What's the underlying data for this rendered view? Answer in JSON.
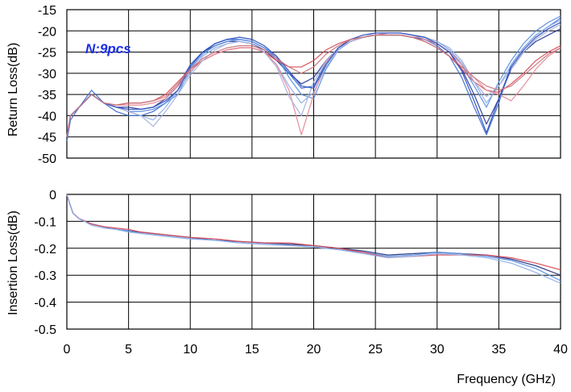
{
  "chart_data": [
    {
      "type": "line",
      "ylabel": "Return Loss(dB)",
      "ylim": [
        -50,
        -15
      ],
      "yticks": [
        "-15",
        "-20",
        "-25",
        "-30",
        "-35",
        "-40",
        "-45",
        "-50"
      ],
      "xlim": [
        0,
        40
      ],
      "grid": true,
      "annotation": "N:9pcs",
      "annotation_color": "#1a2ee6",
      "series": [
        {
          "color": "#2a3f9a",
          "x": [
            0,
            0.3,
            1,
            2,
            3,
            4,
            5,
            6,
            7,
            8,
            9,
            10,
            11,
            12,
            13,
            14,
            15,
            16,
            17,
            18,
            19,
            20,
            21,
            22,
            23,
            24,
            25,
            26,
            27,
            28,
            29,
            30,
            31,
            32,
            33,
            34,
            35,
            36,
            37,
            38,
            39,
            40
          ],
          "values": [
            -45,
            -40,
            -38,
            -35,
            -37,
            -38,
            -38,
            -38.5,
            -38,
            -36,
            -33,
            -28,
            -25,
            -23.5,
            -22.5,
            -22.5,
            -23,
            -24.5,
            -27,
            -30,
            -32.5,
            -31,
            -27,
            -24,
            -22.5,
            -21.5,
            -21,
            -21,
            -21,
            -21.5,
            -22,
            -23,
            -25,
            -29,
            -35,
            -42,
            -36,
            -29,
            -25,
            -22.5,
            -21,
            -19.5
          ]
        },
        {
          "color": "#3f6fd0",
          "x": [
            0,
            0.3,
            1,
            2,
            3,
            4,
            5,
            6,
            7,
            8,
            9,
            10,
            11,
            12,
            13,
            14,
            15,
            16,
            17,
            18,
            19,
            20,
            21,
            22,
            23,
            24,
            25,
            26,
            27,
            28,
            29,
            30,
            31,
            32,
            33,
            34,
            35,
            36,
            37,
            38,
            39,
            40
          ],
          "values": [
            -46,
            -41,
            -38,
            -34,
            -37,
            -39,
            -40,
            -40,
            -39,
            -37,
            -34,
            -28,
            -25,
            -23,
            -22,
            -22,
            -22.5,
            -24,
            -26.5,
            -30,
            -33.5,
            -33,
            -27.5,
            -24,
            -22,
            -21.5,
            -21,
            -21,
            -21,
            -21.5,
            -22,
            -23.5,
            -26,
            -31,
            -38,
            -44.5,
            -37,
            -28,
            -24,
            -21,
            -19,
            -17
          ]
        },
        {
          "color": "#5a8fe0",
          "x": [
            0,
            0.3,
            1,
            2,
            3,
            4,
            5,
            6,
            7,
            8,
            9,
            10,
            11,
            12,
            13,
            14,
            15,
            16,
            17,
            18,
            19,
            20,
            21,
            22,
            23,
            24,
            25,
            26,
            27,
            28,
            29,
            30,
            31,
            32,
            33,
            34,
            35,
            36,
            37,
            38,
            39,
            40
          ],
          "values": [
            -45,
            -40,
            -38,
            -35,
            -37,
            -38,
            -39,
            -39,
            -38.5,
            -37,
            -35,
            -29,
            -25.5,
            -23.5,
            -22.5,
            -22,
            -22.5,
            -24,
            -26,
            -31,
            -35,
            -36,
            -29,
            -24.5,
            -22.5,
            -21.5,
            -21,
            -20.5,
            -20.5,
            -21,
            -21.5,
            -22.5,
            -24.5,
            -28,
            -33,
            -38,
            -32,
            -27,
            -23,
            -20,
            -18,
            -16.5
          ]
        },
        {
          "color": "#8fb0e8",
          "x": [
            0,
            0.3,
            1,
            2,
            3,
            4,
            5,
            6,
            7,
            8,
            9,
            10,
            11,
            12,
            13,
            14,
            15,
            16,
            17,
            18,
            19,
            20,
            21,
            22,
            23,
            24,
            25,
            26,
            27,
            28,
            29,
            30,
            31,
            32,
            33,
            34,
            35,
            36,
            37,
            38,
            39,
            40
          ],
          "values": [
            -45,
            -40,
            -38,
            -35,
            -37,
            -38,
            -39,
            -40,
            -41,
            -38,
            -34,
            -30,
            -26,
            -24,
            -23,
            -22.5,
            -23,
            -25,
            -28,
            -33,
            -37,
            -34.5,
            -28.5,
            -24.5,
            -22.5,
            -21.5,
            -21,
            -20.5,
            -20.5,
            -21,
            -21.5,
            -22.5,
            -24,
            -27,
            -32,
            -37,
            -33,
            -28,
            -24,
            -21,
            -19,
            -17.5
          ]
        },
        {
          "color": "#d94d5a",
          "x": [
            0,
            0.3,
            1,
            2,
            3,
            4,
            5,
            6,
            7,
            8,
            9,
            10,
            11,
            12,
            13,
            14,
            15,
            16,
            17,
            18,
            19,
            20,
            21,
            22,
            23,
            24,
            25,
            26,
            27,
            28,
            29,
            30,
            31,
            32,
            33,
            34,
            35,
            36,
            37,
            38,
            39,
            40
          ],
          "values": [
            -45,
            -40,
            -38,
            -35,
            -37,
            -37.5,
            -37,
            -37,
            -36.5,
            -35,
            -32,
            -29,
            -27,
            -25.5,
            -24.5,
            -24,
            -24,
            -25,
            -27,
            -28.5,
            -28.5,
            -27,
            -24.5,
            -23,
            -22,
            -21.5,
            -21,
            -21,
            -21,
            -21.5,
            -22.5,
            -24,
            -26,
            -29,
            -32,
            -34,
            -34.5,
            -32.5,
            -30,
            -27,
            -25,
            -23.5
          ]
        },
        {
          "color": "#e58a98",
          "x": [
            0,
            0.3,
            1,
            2,
            3,
            4,
            5,
            6,
            7,
            8,
            9,
            10,
            11,
            12,
            13,
            14,
            15,
            16,
            17,
            18,
            19,
            20,
            21,
            22,
            23,
            24,
            25,
            26,
            27,
            28,
            29,
            30,
            31,
            32,
            33,
            34,
            35,
            36,
            37,
            38,
            39,
            40
          ],
          "values": [
            -45,
            -40,
            -38,
            -35,
            -37,
            -37.5,
            -37.5,
            -37.5,
            -37,
            -36,
            -33,
            -29.5,
            -27,
            -25.5,
            -24.5,
            -24,
            -24,
            -25,
            -28,
            -34,
            -44.5,
            -35,
            -27.5,
            -24,
            -22.5,
            -21.5,
            -21,
            -20.5,
            -20.5,
            -21,
            -22,
            -23,
            -25,
            -28,
            -31,
            -34,
            -35,
            -36.5,
            -33,
            -29,
            -26,
            -24
          ]
        },
        {
          "color": "#a7b3da",
          "x": [
            0,
            0.3,
            1,
            2,
            3,
            4,
            5,
            6,
            7,
            8,
            9,
            10,
            11,
            12,
            13,
            14,
            15,
            16,
            17,
            18,
            19,
            20,
            21,
            22,
            23,
            24,
            25,
            26,
            27,
            28,
            29,
            30,
            31,
            32,
            33,
            34,
            35,
            36,
            37,
            38,
            39,
            40
          ],
          "values": [
            -45,
            -40,
            -38,
            -35,
            -37,
            -38,
            -39,
            -40,
            -42.5,
            -39,
            -35,
            -30.5,
            -27,
            -24.5,
            -23,
            -22.5,
            -23,
            -25,
            -28.5,
            -35.5,
            -40,
            -32,
            -27,
            -24,
            -22.5,
            -21.5,
            -20.5,
            -20.5,
            -20.5,
            -21,
            -21.5,
            -22.5,
            -24.5,
            -27.5,
            -32,
            -35.5,
            -33,
            -29,
            -25,
            -22,
            -20,
            -18.5
          ]
        },
        {
          "color": "#2d4fbf",
          "x": [
            0,
            0.3,
            1,
            2,
            3,
            4,
            5,
            6,
            7,
            8,
            9,
            10,
            11,
            12,
            13,
            14,
            15,
            16,
            17,
            18,
            19,
            20,
            21,
            22,
            23,
            24,
            25,
            26,
            27,
            28,
            29,
            30,
            31,
            32,
            33,
            34,
            35,
            36,
            37,
            38,
            39,
            40
          ],
          "values": [
            -45,
            -40,
            -38,
            -35,
            -37,
            -38,
            -38.5,
            -38.5,
            -38,
            -36.5,
            -34,
            -28.5,
            -25,
            -23,
            -22,
            -21.5,
            -22,
            -23.5,
            -26,
            -29.5,
            -33,
            -33.5,
            -28,
            -24,
            -22,
            -21,
            -20.5,
            -20.5,
            -20.5,
            -21,
            -21.5,
            -23,
            -25,
            -29.5,
            -36.5,
            -44,
            -36,
            -28.5,
            -24.5,
            -21.5,
            -19.5,
            -18
          ]
        },
        {
          "color": "#c97880",
          "x": [
            0,
            0.3,
            1,
            2,
            3,
            4,
            5,
            6,
            7,
            8,
            9,
            10,
            11,
            12,
            13,
            14,
            15,
            16,
            17,
            18,
            19,
            20,
            21,
            22,
            23,
            24,
            25,
            26,
            27,
            28,
            29,
            30,
            31,
            32,
            33,
            34,
            35,
            36,
            37,
            38,
            39,
            40
          ],
          "values": [
            -45,
            -40,
            -38,
            -35,
            -37,
            -37.5,
            -37,
            -37,
            -36.5,
            -35.5,
            -32.5,
            -29,
            -26.5,
            -25,
            -24,
            -23.5,
            -23.5,
            -24.5,
            -26.5,
            -28.5,
            -30,
            -28.5,
            -25.5,
            -23.5,
            -22,
            -21.5,
            -21,
            -21,
            -21,
            -21.5,
            -22.5,
            -24,
            -26,
            -28.5,
            -31,
            -33,
            -34,
            -33,
            -30.5,
            -28,
            -25.5,
            -24
          ]
        }
      ]
    },
    {
      "type": "line",
      "ylabel": "Insertion Loss(dB)",
      "xlabel": "Frequency (GHz)",
      "ylim": [
        -0.5,
        0
      ],
      "yticks": [
        "0",
        "-0.1",
        "-0.2",
        "-0.3",
        "-0.4",
        "-0.5"
      ],
      "xlim": [
        0,
        40
      ],
      "xticks": [
        "0",
        "5",
        "10",
        "15",
        "20",
        "25",
        "30",
        "35",
        "40"
      ],
      "grid": true,
      "series": [
        {
          "color": "#1f2f80",
          "x": [
            0,
            0.2,
            0.5,
            1,
            2,
            3,
            4,
            5,
            6,
            8,
            10,
            12,
            14,
            16,
            18,
            20,
            22,
            24,
            26,
            28,
            30,
            32,
            34,
            36,
            38,
            40
          ],
          "values": [
            0,
            -0.03,
            -0.07,
            -0.09,
            -0.11,
            -0.12,
            -0.13,
            -0.135,
            -0.14,
            -0.15,
            -0.16,
            -0.17,
            -0.175,
            -0.18,
            -0.185,
            -0.19,
            -0.2,
            -0.21,
            -0.225,
            -0.22,
            -0.215,
            -0.22,
            -0.225,
            -0.24,
            -0.265,
            -0.3
          ]
        },
        {
          "color": "#5a8fe0",
          "x": [
            0,
            0.2,
            0.5,
            1,
            2,
            3,
            4,
            5,
            6,
            8,
            10,
            12,
            14,
            16,
            18,
            20,
            22,
            24,
            26,
            28,
            30,
            32,
            34,
            36,
            38,
            40
          ],
          "values": [
            0,
            -0.03,
            -0.07,
            -0.09,
            -0.11,
            -0.12,
            -0.13,
            -0.135,
            -0.145,
            -0.155,
            -0.165,
            -0.17,
            -0.18,
            -0.185,
            -0.19,
            -0.195,
            -0.205,
            -0.215,
            -0.23,
            -0.225,
            -0.215,
            -0.22,
            -0.23,
            -0.245,
            -0.275,
            -0.32
          ]
        },
        {
          "color": "#d94d5a",
          "x": [
            0,
            0.2,
            0.5,
            1,
            2,
            3,
            4,
            5,
            6,
            8,
            10,
            12,
            14,
            16,
            18,
            20,
            22,
            24,
            26,
            28,
            30,
            32,
            34,
            36,
            38,
            40
          ],
          "values": [
            0,
            -0.03,
            -0.07,
            -0.09,
            -0.11,
            -0.12,
            -0.125,
            -0.13,
            -0.14,
            -0.15,
            -0.16,
            -0.165,
            -0.175,
            -0.18,
            -0.18,
            -0.19,
            -0.2,
            -0.215,
            -0.235,
            -0.23,
            -0.225,
            -0.225,
            -0.225,
            -0.235,
            -0.255,
            -0.28
          ]
        },
        {
          "color": "#8fb0e8",
          "x": [
            0,
            0.2,
            0.5,
            1,
            2,
            3,
            4,
            5,
            6,
            8,
            10,
            12,
            14,
            16,
            18,
            20,
            22,
            24,
            26,
            28,
            30,
            32,
            34,
            36,
            38,
            40
          ],
          "values": [
            0,
            -0.03,
            -0.07,
            -0.09,
            -0.115,
            -0.125,
            -0.13,
            -0.14,
            -0.145,
            -0.155,
            -0.165,
            -0.17,
            -0.18,
            -0.185,
            -0.19,
            -0.195,
            -0.205,
            -0.22,
            -0.235,
            -0.23,
            -0.22,
            -0.225,
            -0.235,
            -0.255,
            -0.29,
            -0.33
          ]
        }
      ]
    }
  ]
}
